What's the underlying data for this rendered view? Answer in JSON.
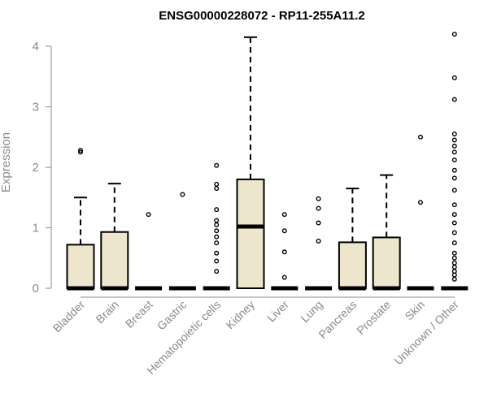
{
  "chart_data": {
    "type": "boxplot",
    "title": "ENSG00000228072 - RP11-255A11.2",
    "xlabel": "",
    "ylabel": "Expression",
    "ylim": [
      0,
      4.2
    ],
    "yticks": [
      0,
      1,
      2,
      3,
      4
    ],
    "grid": false,
    "box_fill": "#ede6cc",
    "box_stroke": "#000000",
    "categories": [
      "Bladder",
      "Brain",
      "Breast",
      "Gastric",
      "Hematopoietic cells",
      "Kidney",
      "Liver",
      "Lung",
      "Pancreas",
      "Prostate",
      "Skin",
      "Unknown / Other"
    ],
    "boxes": [
      {
        "q1": 0,
        "median": 0,
        "q3": 0.72,
        "whisker_low": 0,
        "whisker_high": 1.5,
        "outliers": [
          2.25,
          2.28
        ]
      },
      {
        "q1": 0,
        "median": 0,
        "q3": 0.93,
        "whisker_low": 0,
        "whisker_high": 1.73,
        "outliers": []
      },
      {
        "q1": 0,
        "median": 0,
        "q3": 0,
        "whisker_low": 0,
        "whisker_high": 0,
        "outliers": [
          1.22
        ]
      },
      {
        "q1": 0,
        "median": 0,
        "q3": 0,
        "whisker_low": 0,
        "whisker_high": 0,
        "outliers": [
          1.55
        ]
      },
      {
        "q1": 0,
        "median": 0,
        "q3": 0,
        "whisker_low": 0,
        "whisker_high": 0,
        "outliers": [
          0.28,
          0.45,
          0.58,
          0.75,
          0.85,
          0.95,
          1.05,
          1.12,
          1.3,
          1.65,
          1.72,
          2.03
        ]
      },
      {
        "q1": 0,
        "median": 1.02,
        "q3": 1.8,
        "whisker_low": 0,
        "whisker_high": 4.15,
        "outliers": []
      },
      {
        "q1": 0,
        "median": 0,
        "q3": 0,
        "whisker_low": 0,
        "whisker_high": 0,
        "outliers": [
          0.18,
          0.6,
          0.95,
          1.22
        ]
      },
      {
        "q1": 0,
        "median": 0,
        "q3": 0,
        "whisker_low": 0,
        "whisker_high": 0,
        "outliers": [
          0.78,
          1.08,
          1.32,
          1.48
        ]
      },
      {
        "q1": 0,
        "median": 0,
        "q3": 0.76,
        "whisker_low": 0,
        "whisker_high": 1.65,
        "outliers": []
      },
      {
        "q1": 0,
        "median": 0,
        "q3": 0.84,
        "whisker_low": 0,
        "whisker_high": 1.87,
        "outliers": []
      },
      {
        "q1": 0,
        "median": 0,
        "q3": 0,
        "whisker_low": 0,
        "whisker_high": 0,
        "outliers": [
          1.42,
          2.5
        ]
      },
      {
        "q1": 0,
        "median": 0,
        "q3": 0,
        "whisker_low": 0,
        "whisker_high": 0,
        "outliers": [
          0.15,
          0.22,
          0.28,
          0.35,
          0.42,
          0.5,
          0.58,
          0.75,
          0.92,
          1.08,
          1.22,
          1.38,
          1.62,
          1.82,
          1.95,
          2.12,
          2.25,
          2.35,
          2.45,
          2.55,
          3.12,
          3.48,
          4.2
        ]
      }
    ]
  }
}
